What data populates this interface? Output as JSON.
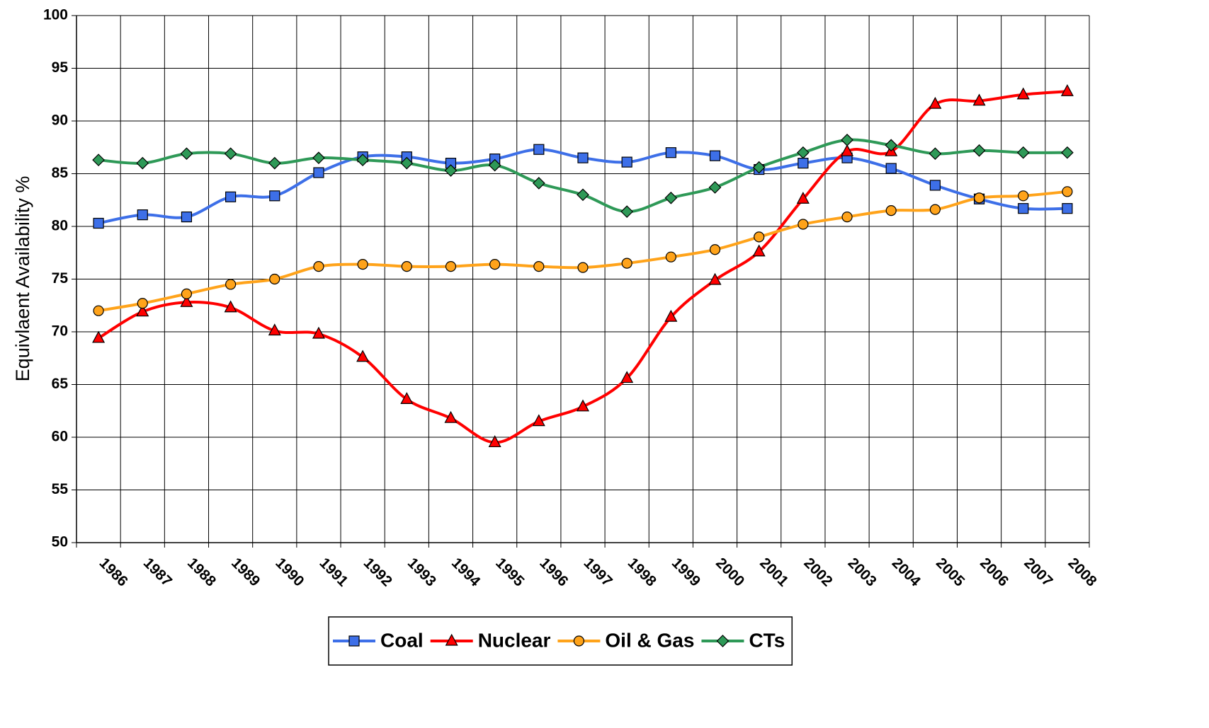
{
  "chart_data": {
    "type": "line",
    "ylabel": "Equivlaent Availability %",
    "categories": [
      "1986",
      "1987",
      "1988",
      "1989",
      "1990",
      "1991",
      "1992",
      "1993",
      "1994",
      "1995",
      "1996",
      "1997",
      "1998",
      "1999",
      "2000",
      "2001",
      "2002",
      "2003",
      "2004",
      "2005",
      "2006",
      "2007",
      "2008"
    ],
    "series": [
      {
        "name": "Coal",
        "color": "#3d6fe8",
        "marker": "square",
        "values": [
          80.3,
          81.1,
          80.9,
          82.8,
          82.9,
          85.1,
          86.6,
          86.6,
          86.0,
          86.4,
          87.3,
          86.5,
          86.1,
          87.0,
          86.7,
          85.4,
          86.0,
          86.5,
          85.5,
          83.9,
          82.6,
          81.7,
          81.7
        ]
      },
      {
        "name": "Nuclear",
        "color": "#ff0000",
        "marker": "triangle",
        "values": [
          69.4,
          71.9,
          72.8,
          72.3,
          70.1,
          69.8,
          67.6,
          63.6,
          61.8,
          59.5,
          61.5,
          62.9,
          65.6,
          71.4,
          74.9,
          77.6,
          82.6,
          87.1,
          87.1,
          91.6,
          91.9,
          92.5,
          92.8
        ]
      },
      {
        "name": "Oil & Gas",
        "color": "#ffa31a",
        "marker": "circle",
        "values": [
          72.0,
          72.7,
          73.6,
          74.5,
          75.0,
          76.2,
          76.4,
          76.2,
          76.2,
          76.4,
          76.2,
          76.1,
          76.5,
          77.1,
          77.8,
          79.0,
          80.2,
          80.9,
          81.5,
          81.6,
          82.7,
          82.9,
          83.3
        ]
      },
      {
        "name": "CTs",
        "color": "#2e9957",
        "marker": "diamond",
        "values": [
          86.3,
          86.0,
          86.9,
          86.9,
          86.0,
          86.5,
          86.3,
          86.0,
          85.3,
          85.8,
          84.1,
          83.0,
          81.4,
          82.7,
          83.7,
          85.6,
          87.0,
          88.2,
          87.7,
          86.9,
          87.2,
          87.0,
          87.0
        ]
      }
    ],
    "ylim": [
      50,
      100
    ],
    "yticks": [
      50,
      55,
      60,
      65,
      70,
      75,
      80,
      85,
      90,
      95,
      100
    ],
    "grid": true,
    "legend": "bottom"
  }
}
